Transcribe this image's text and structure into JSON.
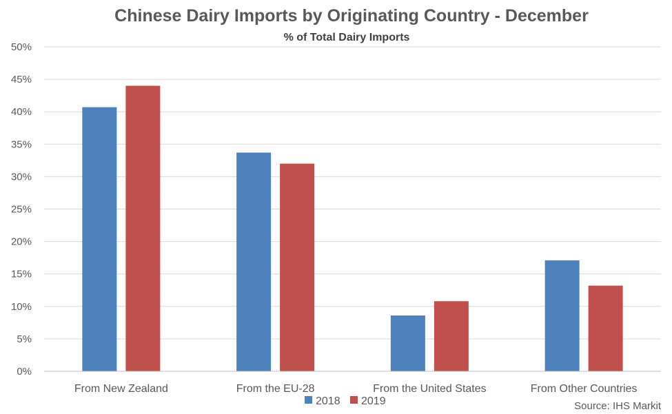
{
  "chart_data": {
    "type": "bar",
    "title": "Chinese Dairy Imports by Originating Country - December",
    "subtitle": "% of Total Dairy Imports",
    "categories": [
      "From New Zealand",
      "From the EU-28",
      "From the United States",
      "From Other Countries"
    ],
    "series": [
      {
        "name": "2018",
        "color": "#4F81BD",
        "values": [
          40.7,
          33.7,
          8.6,
          17.1
        ]
      },
      {
        "name": "2019",
        "color": "#C0504D",
        "values": [
          44.0,
          32.0,
          10.8,
          13.2
        ]
      }
    ],
    "ylim": [
      0,
      50
    ],
    "yticks": [
      0,
      5,
      10,
      15,
      20,
      25,
      30,
      35,
      40,
      45,
      50
    ],
    "ytick_labels": [
      "0%",
      "5%",
      "10%",
      "15%",
      "20%",
      "25%",
      "30%",
      "35%",
      "40%",
      "45%",
      "50%"
    ],
    "grid": true,
    "legend_position": "bottom",
    "source": "Source: IHS Markit"
  }
}
